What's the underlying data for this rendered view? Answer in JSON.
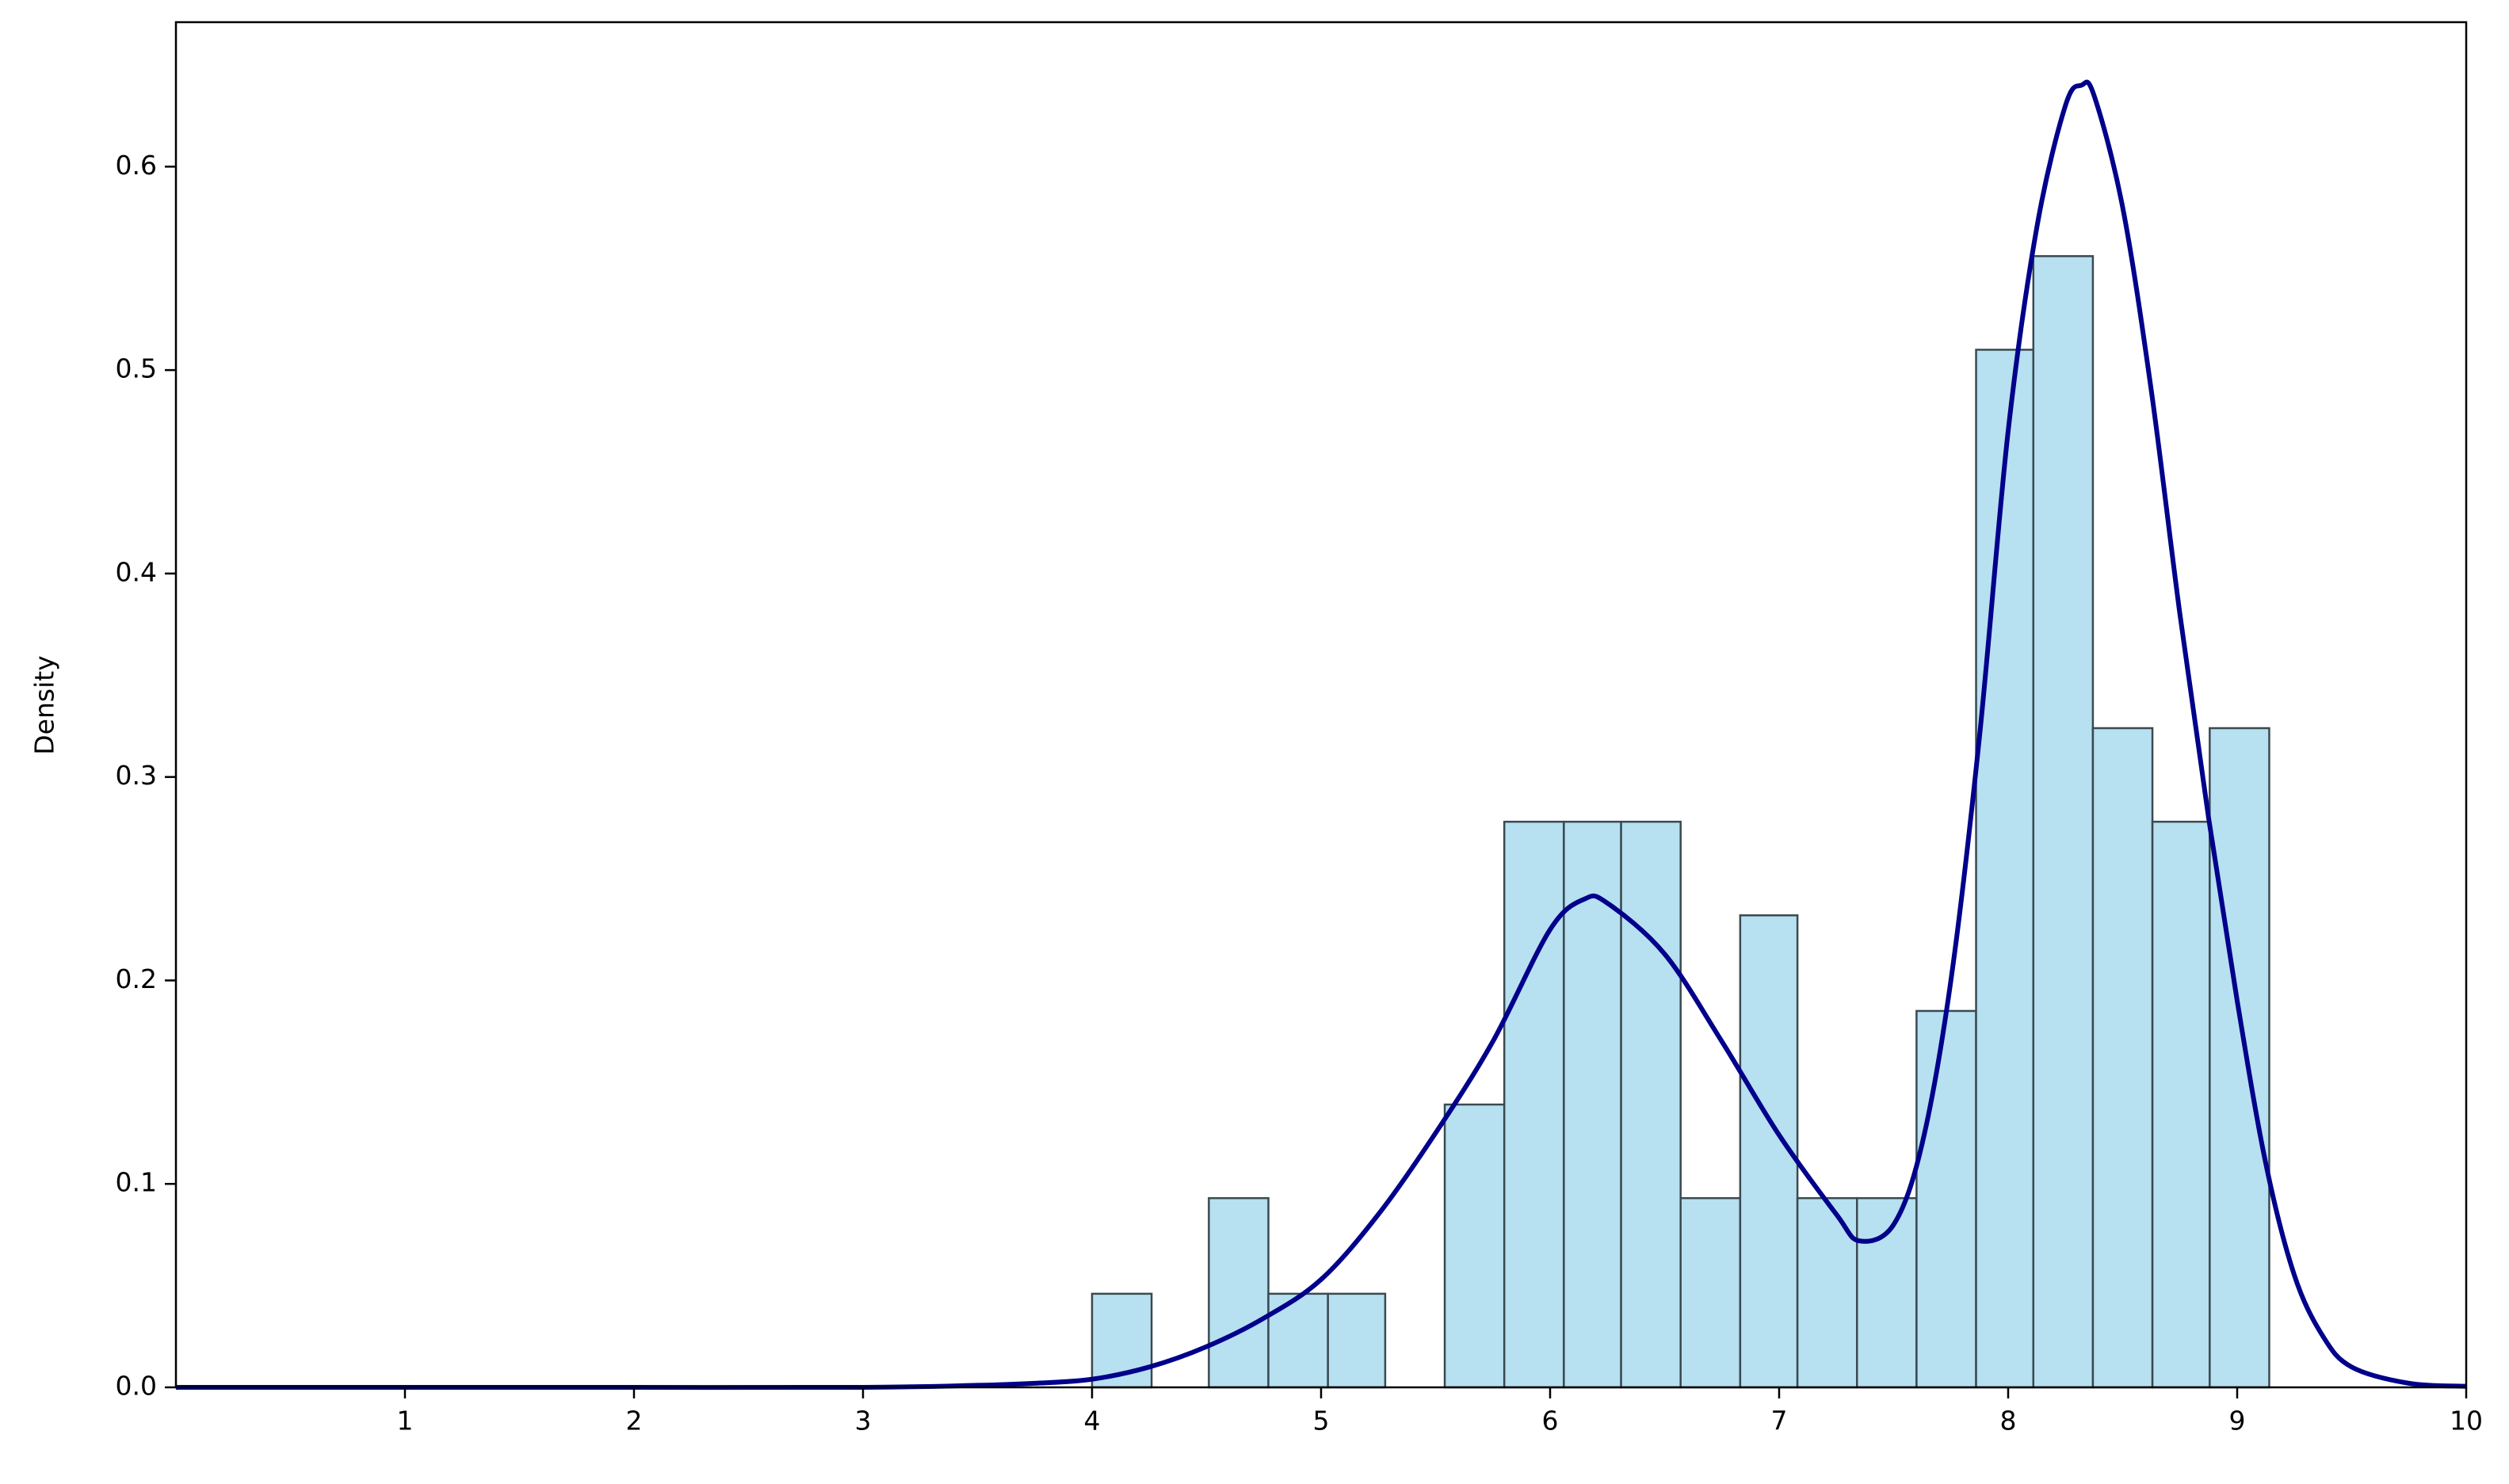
{
  "chart_data": {
    "type": "histogram",
    "ylabel": "Density",
    "bins": [
      4.0,
      4.26,
      4.51,
      4.77,
      5.03,
      5.28,
      5.54,
      5.8,
      6.06,
      6.31,
      6.57,
      6.83,
      7.08,
      7.34,
      7.6,
      7.86,
      8.11,
      8.37,
      8.63,
      8.88,
      9.14
    ],
    "values": [
      0.046,
      0,
      0.093,
      0.046,
      0.046,
      0,
      0.139,
      0.278,
      0.278,
      0.278,
      0.093,
      0.232,
      0.093,
      0.093,
      0.185,
      0.51,
      0.556,
      0.324,
      0.278,
      0.324
    ],
    "color": "#b7e0f1",
    "edgecolor": "#3a4a50",
    "line": {
      "type": "line",
      "color": "#00008b",
      "x": [
        0,
        1,
        2,
        3,
        3.5,
        3.75,
        4.0,
        4.25,
        4.5,
        4.75,
        5.0,
        5.25,
        5.5,
        5.75,
        6.0,
        6.15,
        6.25,
        6.5,
        6.75,
        7.0,
        7.25,
        7.35,
        7.5,
        7.625,
        7.75,
        7.875,
        8.0,
        8.125,
        8.25,
        8.32,
        8.375,
        8.5,
        8.625,
        8.75,
        8.875,
        9.0,
        9.125,
        9.25,
        9.375,
        9.5,
        9.75,
        10
      ],
      "values": [
        0,
        0,
        0,
        0,
        0.001,
        0.002,
        0.004,
        0.01,
        0.02,
        0.034,
        0.053,
        0.085,
        0.125,
        0.17,
        0.225,
        0.24,
        0.238,
        0.213,
        0.17,
        0.124,
        0.085,
        0.072,
        0.08,
        0.12,
        0.2,
        0.32,
        0.47,
        0.57,
        0.63,
        0.64,
        0.635,
        0.58,
        0.49,
        0.38,
        0.28,
        0.19,
        0.11,
        0.055,
        0.025,
        0.01,
        0.002,
        0.0005
      ]
    },
    "xlim": [
      0,
      10
    ],
    "xticks": [
      1,
      2,
      3,
      4,
      5,
      6,
      7,
      8,
      9,
      10
    ],
    "ylim": [
      0,
      0.671
    ],
    "yticks": [
      {
        "value": 0,
        "label": "0.0"
      },
      0.1,
      0.2,
      0.3,
      0.4,
      0.5,
      0.6
    ]
  }
}
